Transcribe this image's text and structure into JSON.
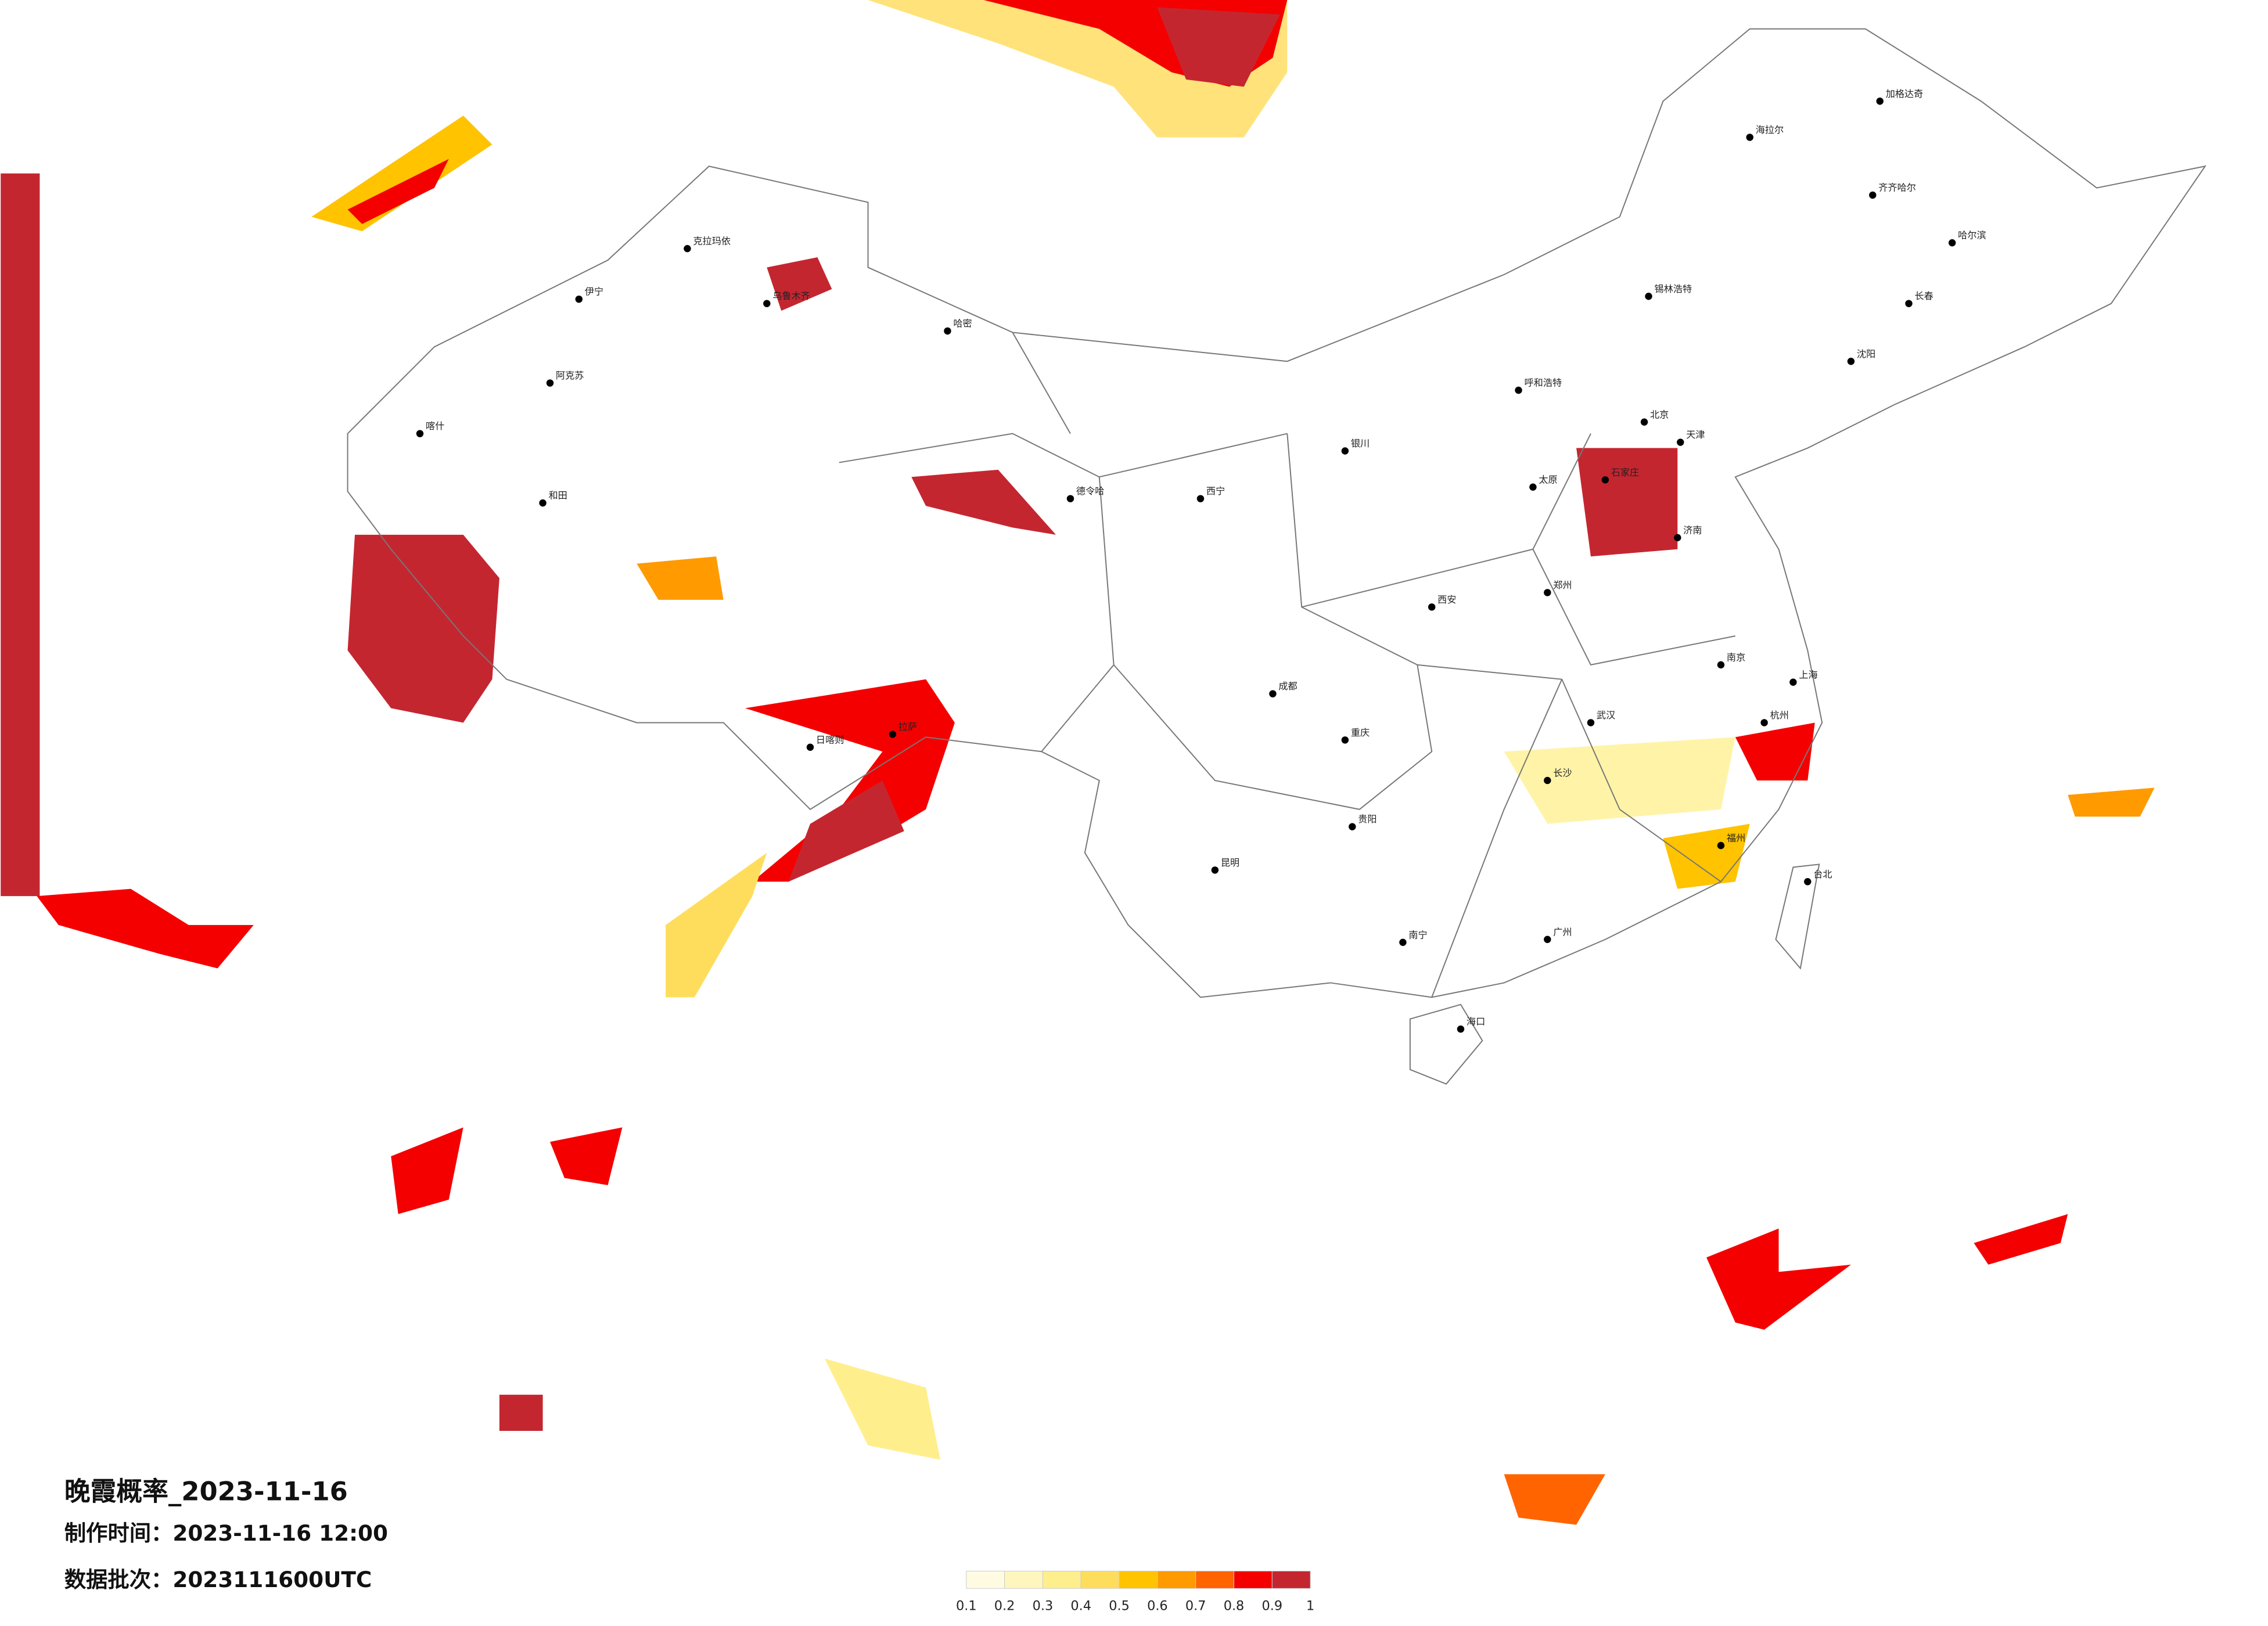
{
  "title": "晚霞概率_2023-11-16",
  "produced": "制作时间：2023-11-16 12:00",
  "batch": "数据批次：2023111600UTC",
  "legend": {
    "colors": [
      "#fffbe3",
      "#fff6bd",
      "#ffee8c",
      "#ffdd5c",
      "#ffc300",
      "#ff9a00",
      "#ff6400",
      "#f40000",
      "#c42630"
    ],
    "ticks": [
      0.1,
      0.2,
      0.3,
      0.4,
      0.5,
      0.6,
      0.7,
      0.8,
      0.9,
      1
    ]
  },
  "cities": [
    "克拉玛依",
    "乌鲁木齐",
    "伊宁",
    "阿克苏",
    "喀什",
    "和田",
    "哈密",
    "日喀则",
    "拉萨",
    "德令哈",
    "西宁",
    "银川",
    "呼和浩特",
    "锡林浩特",
    "海拉尔",
    "加格达奇",
    "齐齐哈尔",
    "哈尔滨",
    "长春",
    "沈阳",
    "北京",
    "天津",
    "石家庄",
    "太原",
    "济南",
    "郑州",
    "西安",
    "成都",
    "重庆",
    "武汉",
    "南京",
    "上海",
    "杭州",
    "长沙",
    "贵阳",
    "昆明",
    "南宁",
    "广州",
    "福州",
    "台北",
    "海口"
  ]
}
